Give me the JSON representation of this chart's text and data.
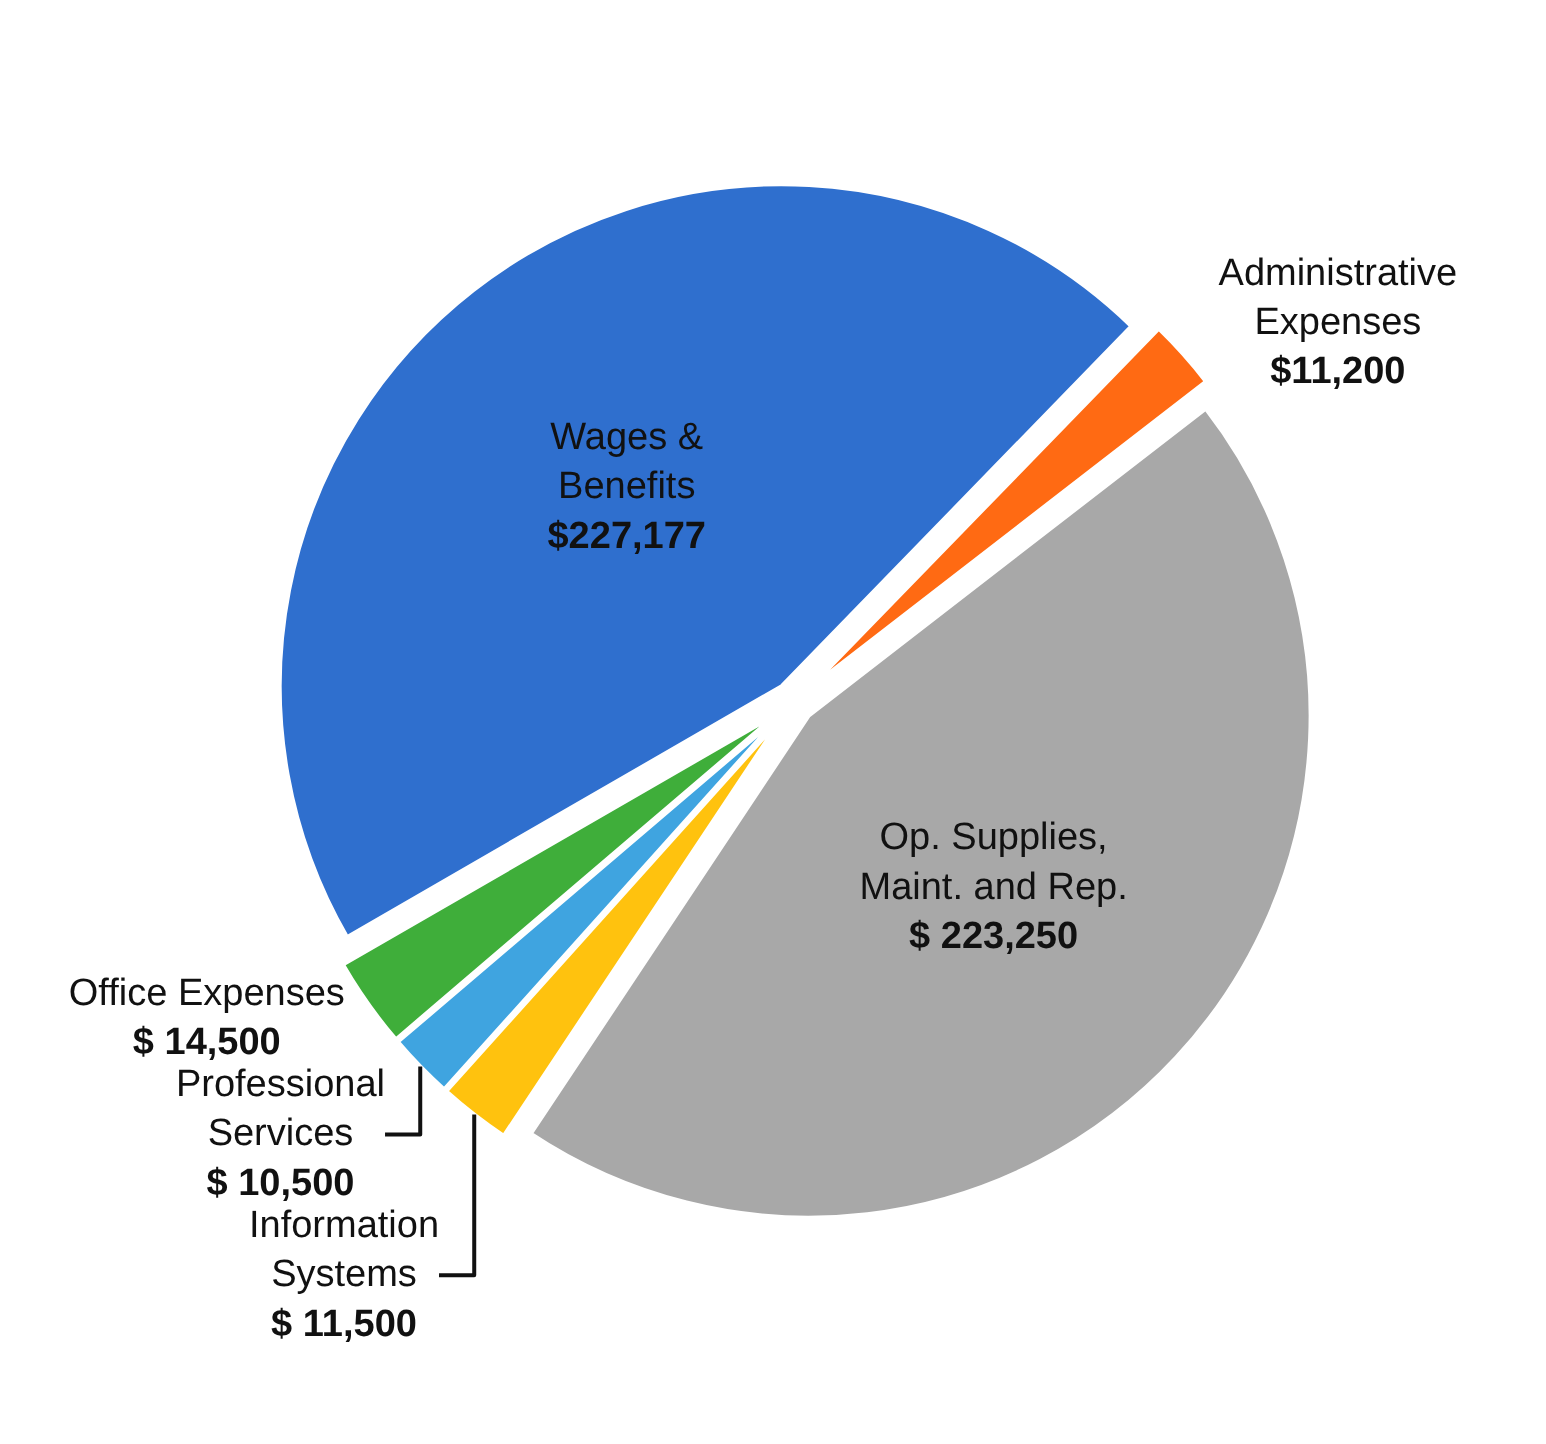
{
  "chart_data": {
    "type": "pie",
    "categories": [
      "Wages & Benefits",
      "Administrative Expenses",
      "Op. Supplies, Maint. and Rep.",
      "Information Systems",
      "Professional Services",
      "Office Expenses"
    ],
    "values": [
      227177,
      11200,
      223250,
      11500,
      10500,
      14500
    ],
    "value_labels": [
      "$227,177",
      "$11,200",
      "$ 223,250",
      "$ 11,500",
      "$ 10,500",
      "$ 14,500"
    ],
    "colors": [
      "#2f6fce",
      "#ff6a13",
      "#a8a8a8",
      "#ffc20e",
      "#3fa4e0",
      "#3fae3a"
    ],
    "legend": false
  }
}
